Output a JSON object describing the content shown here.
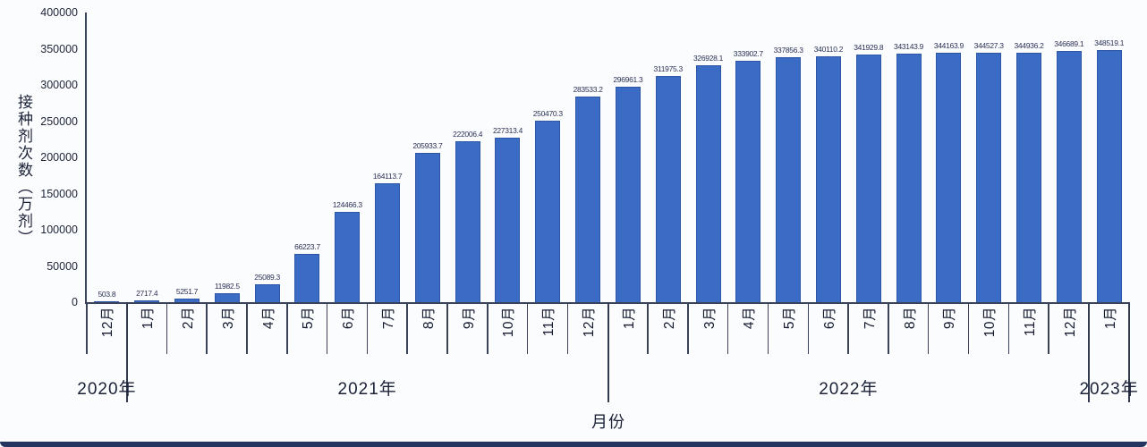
{
  "page": {
    "background": "#fbfcfd",
    "footer_bar_color": "#24355f"
  },
  "chart_data": {
    "type": "bar",
    "title": "",
    "ylabel": "接种剂次数（万剂）",
    "xlabel": "月份",
    "ylim": [
      0,
      400000
    ],
    "grid": false,
    "legend": null,
    "bar_color": "#3a6cc6",
    "bar_border_color": "#2d57a5",
    "axis_color": "#39435c",
    "ytick_labels": [
      "0",
      "50000",
      "100000",
      "150000",
      "200000",
      "250000",
      "300000",
      "350000",
      "400000"
    ],
    "ytick_values": [
      0,
      50000,
      100000,
      150000,
      200000,
      250000,
      300000,
      350000,
      400000
    ],
    "categories": [
      "12月",
      "1月",
      "2月",
      "3月",
      "4月",
      "5月",
      "6月",
      "7月",
      "8月",
      "9月",
      "10月",
      "11月",
      "12月",
      "1月",
      "2月",
      "3月",
      "4月",
      "5月",
      "6月",
      "7月",
      "8月",
      "9月",
      "10月",
      "11月",
      "12月",
      "1月"
    ],
    "year_groups": [
      {
        "label": "2020年",
        "start": 0,
        "count": 1
      },
      {
        "label": "2021年",
        "start": 1,
        "count": 12
      },
      {
        "label": "2022年",
        "start": 13,
        "count": 12
      },
      {
        "label": "2023年",
        "start": 25,
        "count": 1
      }
    ],
    "values": [
      503.8,
      2717.4,
      5251.7,
      11982.5,
      25089.3,
      66223.7,
      124466.3,
      164113.7,
      205933.7,
      222006.4,
      227313.4,
      250470.3,
      283533.2,
      296961.3,
      311975.3,
      326928.1,
      333902.7,
      337856.3,
      340110.2,
      341929.8,
      343143.9,
      344163.9,
      344527.3,
      344936.2,
      346689.1,
      348519.1
    ],
    "value_labels": [
      "503.8",
      "2717.4",
      "5251.7",
      "11982.5",
      "25089.3",
      "66223.7",
      "124466.3",
      "164113.7",
      "205933.7",
      "222006.4",
      "227313.4",
      "250470.3",
      "283533.2",
      "296961.3",
      "311975.3",
      "326928.1",
      "333902.7",
      "337856.3",
      "340110.2",
      "341929.8",
      "343143.9",
      "344163.9",
      "344527.3",
      "344936.2",
      "346689.1",
      "348519.1"
    ]
  }
}
